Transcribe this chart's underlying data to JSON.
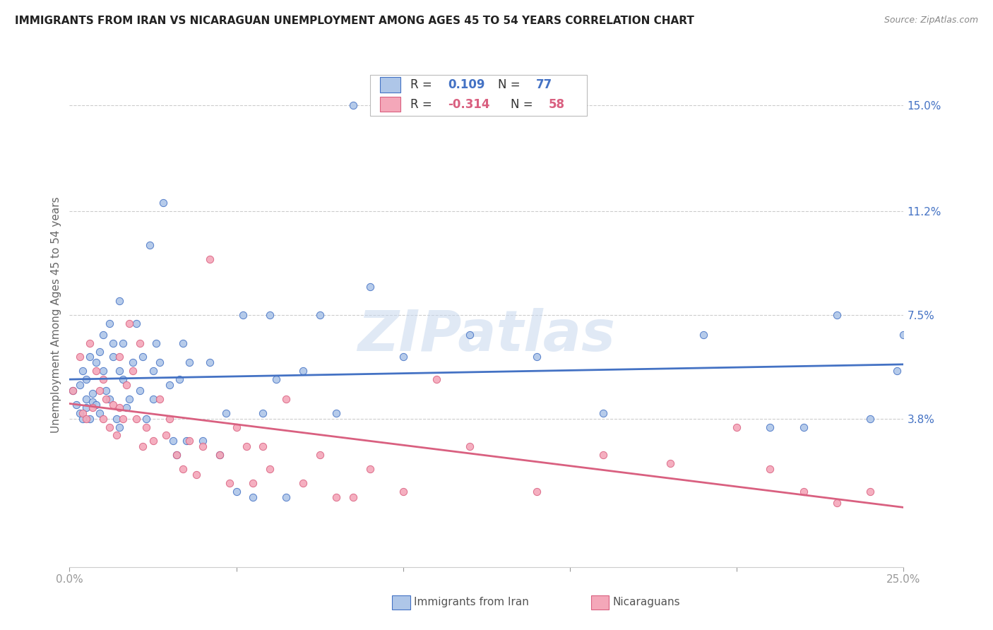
{
  "title": "IMMIGRANTS FROM IRAN VS NICARAGUAN UNEMPLOYMENT AMONG AGES 45 TO 54 YEARS CORRELATION CHART",
  "source": "Source: ZipAtlas.com",
  "ylabel": "Unemployment Among Ages 45 to 54 years",
  "ytick_labels": [
    "15.0%",
    "11.2%",
    "7.5%",
    "3.8%"
  ],
  "ytick_values": [
    0.15,
    0.112,
    0.075,
    0.038
  ],
  "xmin": 0.0,
  "xmax": 0.25,
  "ymin": -0.015,
  "ymax": 0.165,
  "iran_R": 0.109,
  "iran_N": 77,
  "nicaragua_R": -0.314,
  "nicaragua_N": 58,
  "iran_color": "#aec6e8",
  "iran_line_color": "#4472c4",
  "nicaragua_color": "#f4a7b9",
  "nicaragua_line_color": "#d96080",
  "legend_label_iran": "Immigrants from Iran",
  "legend_label_nicaragua": "Nicaraguans",
  "background_color": "#ffffff",
  "grid_color": "#cccccc",
  "title_color": "#222222",
  "watermark": "ZIPatlas",
  "iran_x": [
    0.001,
    0.002,
    0.003,
    0.003,
    0.004,
    0.004,
    0.005,
    0.005,
    0.005,
    0.006,
    0.006,
    0.007,
    0.007,
    0.008,
    0.008,
    0.009,
    0.009,
    0.01,
    0.01,
    0.011,
    0.012,
    0.012,
    0.013,
    0.013,
    0.014,
    0.015,
    0.015,
    0.015,
    0.016,
    0.016,
    0.017,
    0.018,
    0.019,
    0.02,
    0.021,
    0.022,
    0.023,
    0.024,
    0.025,
    0.025,
    0.026,
    0.027,
    0.028,
    0.03,
    0.031,
    0.032,
    0.033,
    0.034,
    0.035,
    0.036,
    0.04,
    0.042,
    0.045,
    0.047,
    0.05,
    0.052,
    0.055,
    0.058,
    0.06,
    0.062,
    0.065,
    0.07,
    0.075,
    0.08,
    0.085,
    0.09,
    0.1,
    0.12,
    0.14,
    0.16,
    0.19,
    0.21,
    0.22,
    0.23,
    0.24,
    0.248,
    0.25
  ],
  "iran_y": [
    0.048,
    0.043,
    0.05,
    0.04,
    0.055,
    0.038,
    0.045,
    0.052,
    0.042,
    0.06,
    0.038,
    0.047,
    0.044,
    0.058,
    0.043,
    0.062,
    0.04,
    0.055,
    0.068,
    0.048,
    0.072,
    0.045,
    0.065,
    0.06,
    0.038,
    0.055,
    0.08,
    0.035,
    0.052,
    0.065,
    0.042,
    0.045,
    0.058,
    0.072,
    0.048,
    0.06,
    0.038,
    0.1,
    0.045,
    0.055,
    0.065,
    0.058,
    0.115,
    0.05,
    0.03,
    0.025,
    0.052,
    0.065,
    0.03,
    0.058,
    0.03,
    0.058,
    0.025,
    0.04,
    0.012,
    0.075,
    0.01,
    0.04,
    0.075,
    0.052,
    0.01,
    0.055,
    0.075,
    0.04,
    0.15,
    0.085,
    0.06,
    0.068,
    0.06,
    0.04,
    0.068,
    0.035,
    0.035,
    0.075,
    0.038,
    0.055,
    0.068
  ],
  "nicaragua_x": [
    0.001,
    0.003,
    0.004,
    0.005,
    0.006,
    0.007,
    0.008,
    0.009,
    0.01,
    0.01,
    0.011,
    0.012,
    0.013,
    0.014,
    0.015,
    0.015,
    0.016,
    0.017,
    0.018,
    0.019,
    0.02,
    0.021,
    0.022,
    0.023,
    0.025,
    0.027,
    0.029,
    0.03,
    0.032,
    0.034,
    0.036,
    0.038,
    0.04,
    0.042,
    0.045,
    0.048,
    0.05,
    0.053,
    0.055,
    0.058,
    0.06,
    0.065,
    0.07,
    0.075,
    0.08,
    0.085,
    0.09,
    0.1,
    0.11,
    0.12,
    0.14,
    0.16,
    0.18,
    0.2,
    0.21,
    0.22,
    0.23,
    0.24
  ],
  "nicaragua_y": [
    0.048,
    0.06,
    0.04,
    0.038,
    0.065,
    0.042,
    0.055,
    0.048,
    0.052,
    0.038,
    0.045,
    0.035,
    0.043,
    0.032,
    0.06,
    0.042,
    0.038,
    0.05,
    0.072,
    0.055,
    0.038,
    0.065,
    0.028,
    0.035,
    0.03,
    0.045,
    0.032,
    0.038,
    0.025,
    0.02,
    0.03,
    0.018,
    0.028,
    0.095,
    0.025,
    0.015,
    0.035,
    0.028,
    0.015,
    0.028,
    0.02,
    0.045,
    0.015,
    0.025,
    0.01,
    0.01,
    0.02,
    0.012,
    0.052,
    0.028,
    0.012,
    0.025,
    0.022,
    0.035,
    0.02,
    0.012,
    0.008,
    0.012
  ]
}
